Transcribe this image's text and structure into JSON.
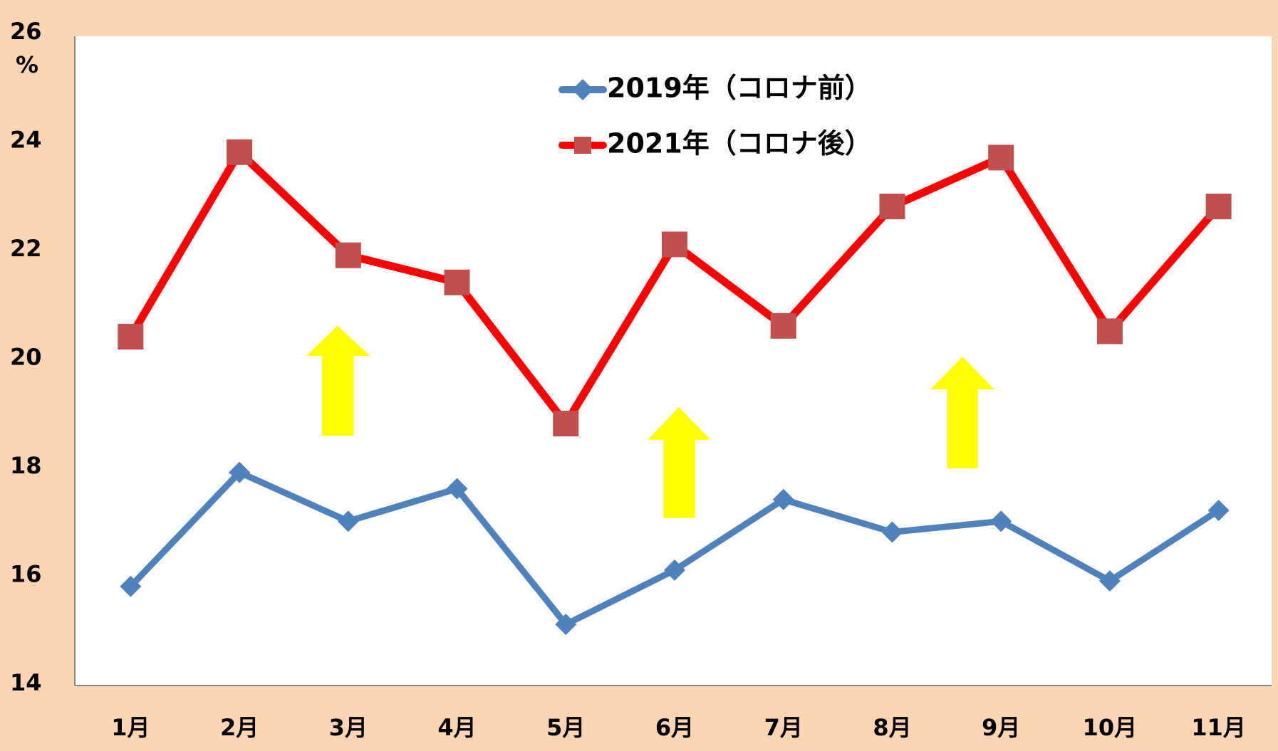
{
  "chart_data": {
    "type": "line",
    "ylabel": "%",
    "categories": [
      "1月",
      "2月",
      "3月",
      "4月",
      "5月",
      "6月",
      "7月",
      "8月",
      "9月",
      "10月",
      "11月"
    ],
    "series": [
      {
        "name": "2019年（コロナ前）",
        "color": "#4f81bd",
        "marker": "diamond",
        "values": [
          15.8,
          17.9,
          17.0,
          17.6,
          15.1,
          16.1,
          17.4,
          16.8,
          17.0,
          15.9,
          17.2
        ]
      },
      {
        "name": "2021年（コロナ後）",
        "color": "#ff0000",
        "marker_color": "#c0504d",
        "marker": "square",
        "values": [
          20.4,
          23.8,
          21.9,
          21.4,
          18.8,
          22.1,
          20.6,
          22.8,
          23.7,
          20.5,
          22.8
        ]
      }
    ],
    "ylim": [
      14,
      26
    ],
    "yticks": [
      14,
      16,
      18,
      20,
      22,
      24,
      26
    ],
    "grid": false
  }
}
